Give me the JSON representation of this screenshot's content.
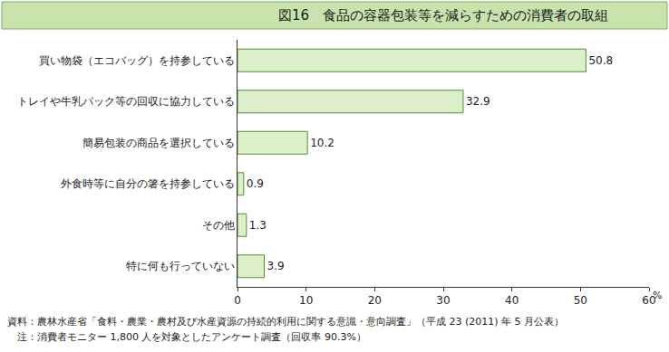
{
  "chart_data": {
    "type": "bar",
    "title": "図16　食品の容器包装等を減らすための消費者の取組",
    "orientation": "horizontal",
    "categories": [
      "買い物袋（エコバッグ）を持参している",
      "トレイや牛乳パック等の回収に協力している",
      "簡易包装の商品を選択している",
      "外食時等に自分の箸を持参している",
      "その他",
      "特に何も行っていない"
    ],
    "values": [
      50.8,
      32.9,
      10.2,
      0.9,
      1.3,
      3.9
    ],
    "color": "#dcefc8",
    "data_labels": true,
    "xlabel": "%",
    "xlim": [
      0,
      60
    ],
    "xticks": [
      0,
      10,
      20,
      30,
      40,
      50,
      60
    ],
    "grid": false,
    "annotations": [
      "資料：農林水産省「食料・農業・農村及び水産資源の持続的利用に関する意識・意向調査」（平成 23 (2011) 年 5 月公表）",
      "　注：消費者モニター 1,800 人を対象としたアンケート調査（回収率 90.3%）"
    ]
  }
}
